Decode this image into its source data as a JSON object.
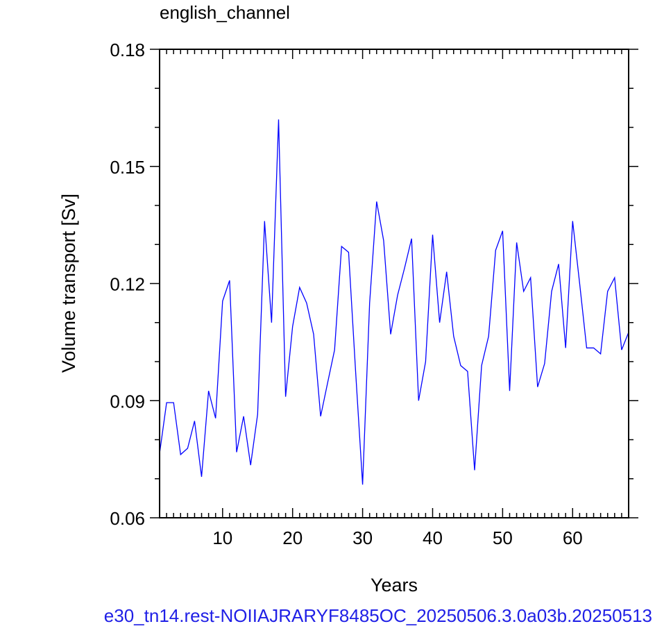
{
  "chart_data": {
    "type": "line",
    "title": "english_channel",
    "xlabel": "Years",
    "ylabel": "Volume transport [Sv]",
    "xlim": [
      1,
      68
    ],
    "ylim": [
      0.06,
      0.18
    ],
    "x_ticks": [
      10,
      20,
      30,
      40,
      50,
      60
    ],
    "y_ticks": [
      0.06,
      0.09,
      0.12,
      0.15,
      0.18
    ],
    "y_tick_labels": [
      "0.06",
      "0.09",
      "0.12",
      "0.15",
      "0.18"
    ],
    "grid": false,
    "series": [
      {
        "color": "#0000ff",
        "x": [
          1,
          2,
          3,
          4,
          5,
          6,
          7,
          8,
          9,
          10,
          11,
          12,
          13,
          14,
          15,
          16,
          17,
          18,
          19,
          20,
          21,
          22,
          23,
          24,
          25,
          26,
          27,
          28,
          29,
          30,
          31,
          32,
          33,
          34,
          35,
          36,
          37,
          38,
          39,
          40,
          41,
          42,
          43,
          44,
          45,
          46,
          47,
          48,
          49,
          50,
          51,
          52,
          53,
          54,
          55,
          56,
          57,
          58,
          59,
          60,
          61,
          62,
          63,
          64,
          65,
          66,
          67,
          68
        ],
        "values": [
          0.0765,
          0.0895,
          0.0895,
          0.0762,
          0.0778,
          0.0848,
          0.0705,
          0.0925,
          0.0855,
          0.1155,
          0.1208,
          0.0768,
          0.086,
          0.0735,
          0.0865,
          0.136,
          0.11,
          0.162,
          0.091,
          0.109,
          0.119,
          0.115,
          0.107,
          0.086,
          0.0945,
          0.103,
          0.1295,
          0.128,
          0.0975,
          0.0685,
          0.115,
          0.141,
          0.131,
          0.107,
          0.117,
          0.124,
          0.1315,
          0.09,
          0.1,
          0.1325,
          0.11,
          0.123,
          0.1065,
          0.099,
          0.0975,
          0.0722,
          0.099,
          0.1065,
          0.1285,
          0.1335,
          0.0925,
          0.1305,
          0.118,
          0.1215,
          0.0935,
          0.0995,
          0.118,
          0.125,
          0.1035,
          0.136,
          0.12,
          0.1035,
          0.1035,
          0.102,
          0.118,
          0.1215,
          0.103,
          0.1075
        ]
      }
    ]
  },
  "footer": {
    "run_id": "e30_tn14.rest-NOIIAJRARYF8485OC_20250506.3.0a03b.20250513"
  }
}
